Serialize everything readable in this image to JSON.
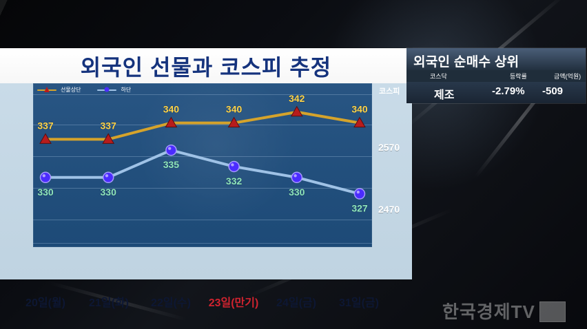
{
  "chart_title": "외국인 선물과 코스피 추정",
  "right_panel": {
    "title": "외국인 순매수 상위",
    "columns": [
      "코스닥",
      "등락률",
      "금액(억원)"
    ],
    "row": {
      "name": "제조",
      "rate": "-2.79%",
      "amount": "-509"
    }
  },
  "watermark": {
    "text": "한국경제TV"
  },
  "chart_data": {
    "type": "line",
    "x": [
      "20일(월)",
      "21일(화)",
      "22일(수)",
      "23일(만기)",
      "24일(금)",
      "31일(금)"
    ],
    "highlight_x": "23일(만기)",
    "series": [
      {
        "name": "선물상단",
        "values": [
          337,
          337,
          340,
          340,
          342,
          340
        ],
        "color": "#d5a32b",
        "marker": "triangle"
      },
      {
        "name": "하단",
        "values": [
          330,
          330,
          335,
          332,
          330,
          327
        ],
        "color": "#9fc2e6",
        "marker": "circle"
      }
    ],
    "ylim": [
      320,
      345
    ],
    "right_axis": {
      "label": "코스피",
      "ticks": [
        2570,
        2470
      ]
    },
    "grid": true,
    "legend": "top-left"
  }
}
